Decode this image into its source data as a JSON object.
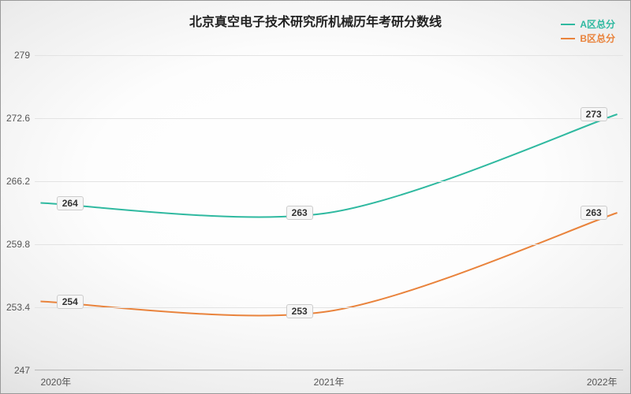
{
  "chart": {
    "type": "line",
    "title": "北京真空电子技术研究所机械历年考研分数线",
    "title_fontsize": 16,
    "label_fontsize": 12,
    "background": {
      "radial_center": "#ffffff",
      "radial_edge": "#d8d8d8",
      "border_color": "#999999"
    },
    "grid_color": "#e3e3e3",
    "axis_color": "#bbbbbb",
    "text_color": "#333333",
    "x": {
      "categories": [
        "2020年",
        "2021年",
        "2022年"
      ],
      "positions_pct": [
        1,
        50,
        99
      ]
    },
    "y": {
      "min": 247,
      "max": 279,
      "ticks": [
        247,
        253.4,
        259.8,
        266.2,
        272.6,
        279
      ]
    },
    "series": [
      {
        "name": "A区总分",
        "color": "#2fb9a0",
        "line_width": 2,
        "values": [
          264,
          263,
          273
        ],
        "labels": [
          "264",
          "263",
          "273"
        ],
        "label_offsets_pct": [
          5,
          -5,
          -4
        ]
      },
      {
        "name": "B区总分",
        "color": "#e9833c",
        "line_width": 2,
        "values": [
          254,
          253,
          263
        ],
        "labels": [
          "254",
          "253",
          "263"
        ],
        "label_offsets_pct": [
          5,
          -5,
          -4
        ]
      }
    ],
    "legend": {
      "position": "top-right"
    },
    "curve_tension": 0.45
  }
}
